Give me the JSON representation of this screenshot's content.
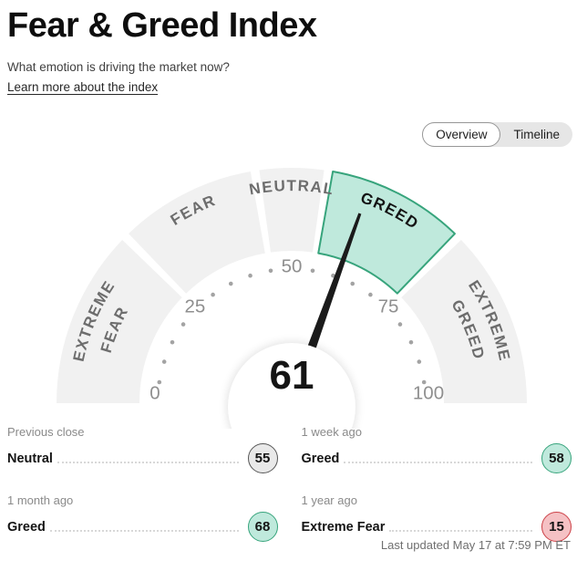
{
  "page": {
    "title": "Fear & Greed Index",
    "subtitle": "What emotion is driving the market now?",
    "link_label": "Learn more about the index",
    "last_updated": "Last updated May 17 at 7:59 PM ET"
  },
  "tabs": {
    "overview": "Overview",
    "timeline": "Timeline"
  },
  "chart_data": {
    "type": "gauge",
    "title": "Fear & Greed Index",
    "min": 0,
    "max": 100,
    "value": 61,
    "value_label": "61",
    "current_sentiment": "Greed",
    "segments": [
      {
        "label": "EXTREME FEAR",
        "from": 0,
        "to": 25,
        "highlighted": false
      },
      {
        "label": "FEAR",
        "from": 25,
        "to": 45,
        "highlighted": false
      },
      {
        "label": "NEUTRAL",
        "from": 45,
        "to": 55,
        "highlighted": false
      },
      {
        "label": "GREED",
        "from": 55,
        "to": 75,
        "highlighted": true
      },
      {
        "label": "EXTREME GREED",
        "from": 75,
        "to": 100,
        "highlighted": false
      }
    ],
    "axis_ticks": [
      0,
      25,
      50,
      75,
      100
    ],
    "dot_interval": 5,
    "colors": {
      "segment_fill": "#f1f1f1",
      "highlight_fill": "#bfe9dc",
      "highlight_stroke": "#37a47c",
      "needle": "#1b1b1b",
      "segment_label": "#6d6d6d",
      "highlight_label": "#141414",
      "tick_label": "#8f8f8f",
      "dot": "#a3a3a3",
      "value_text": "#151515"
    }
  },
  "stats": [
    {
      "period": "Previous close",
      "label": "Neutral",
      "value": 55,
      "badge_fill": "#e9e9e9",
      "badge_stroke": "#565656"
    },
    {
      "period": "1 week ago",
      "label": "Greed",
      "value": 58,
      "badge_fill": "#bfe9dc",
      "badge_stroke": "#37a47c"
    },
    {
      "period": "1 month ago",
      "label": "Greed",
      "value": 68,
      "badge_fill": "#bfe9dc",
      "badge_stroke": "#37a47c"
    },
    {
      "period": "1 year ago",
      "label": "Extreme Fear",
      "value": 15,
      "badge_fill": "#f5c1c4",
      "badge_stroke": "#cc4046"
    }
  ]
}
